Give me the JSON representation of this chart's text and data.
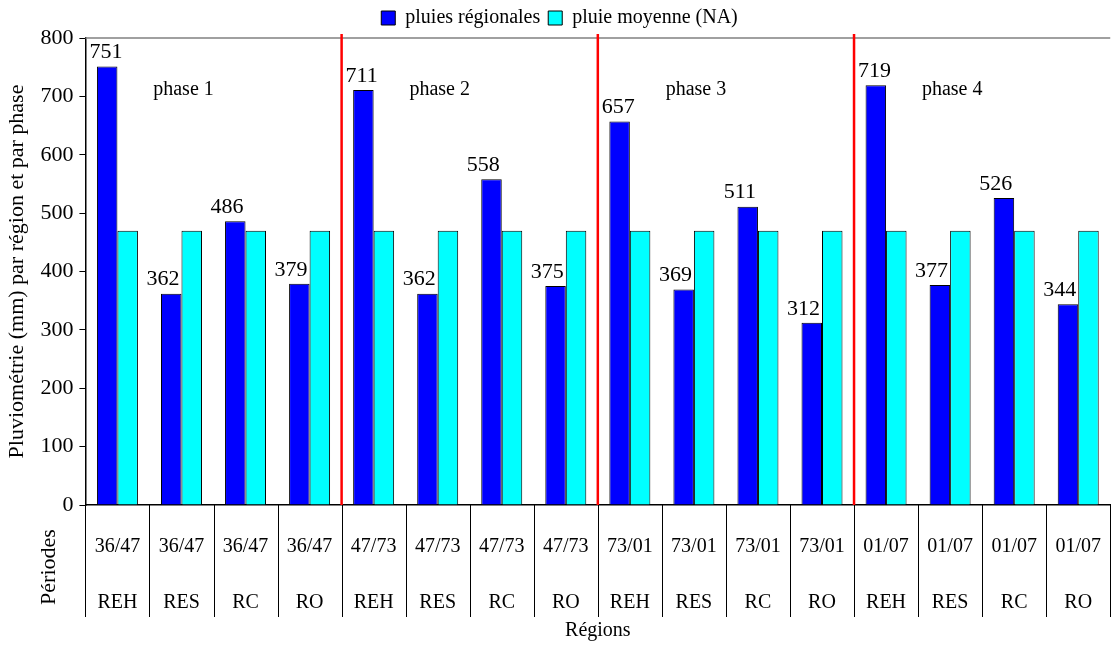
{
  "chart_data": {
    "type": "bar",
    "categories": [
      "36/47\nREH",
      "36/47\nRES",
      "36/47\nRC",
      "36/47\nRO",
      "47/73\nREH",
      "47/73\nRES",
      "47/73\nRC",
      "47/73\nRO",
      "73/01\nREH",
      "73/01\nRES",
      "73/01\nRC",
      "73/01\nRO",
      "01/07\nREH",
      "01/07\nRES",
      "01/07\nRC",
      "01/07\nRO"
    ],
    "ylabel": "Pluviométrie (mm) par région et par phase",
    "annotations": [
      "Périodes",
      "Régions",
      "phase 1",
      "phase 2",
      "phase 3",
      "phase 4"
    ],
    "series": [
      {
        "name": "pluies régionales",
        "color": "#0000ff",
        "values": [
          751,
          362,
          486,
          379,
          711,
          362,
          558,
          375,
          657,
          369,
          511,
          312,
          719,
          377,
          526,
          344
        ],
        "value_labels": [
          "751",
          "362",
          "486",
          "379",
          "711",
          "362",
          "558",
          "375",
          "657",
          "369",
          "511",
          "312",
          "719",
          "377",
          "526",
          "344"
        ]
      },
      {
        "name": "pluie moyenne (NA)",
        "color": "#00ffff",
        "values": [
          470,
          470,
          470,
          470,
          470,
          470,
          470,
          470,
          470,
          470,
          470,
          470,
          470,
          470,
          470,
          470
        ]
      }
    ],
    "ylim": [
      0,
      800
    ],
    "yticks": [
      0,
      100,
      200,
      300,
      400,
      500,
      600,
      700,
      800
    ],
    "legend": "top",
    "grid": false
  }
}
